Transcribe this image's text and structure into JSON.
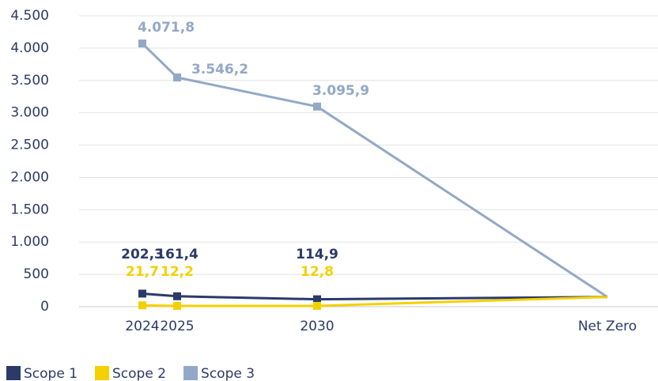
{
  "chart_data": {
    "type": "line",
    "categories": [
      "2024",
      "2025",
      "2030",
      "Net Zero"
    ],
    "series": [
      {
        "name": "Scope 1",
        "color": "#2b3a67",
        "values": [
          202.3,
          161.4,
          114.9,
          150
        ],
        "value_labels": [
          "202,3",
          "161,4",
          "114,9",
          null
        ]
      },
      {
        "name": "Scope 2",
        "color": "#f5d000",
        "values": [
          21.7,
          12.2,
          12.8,
          150
        ],
        "value_labels": [
          "21,7",
          "12,2",
          "12,8",
          null
        ]
      },
      {
        "name": "Scope 3",
        "color": "#93a8c6",
        "values": [
          4071.8,
          3546.2,
          3095.9,
          150
        ],
        "value_labels": [
          "4.071,8",
          "3.546,2",
          "3.095,9",
          null
        ]
      }
    ],
    "ylim": [
      0,
      4500
    ],
    "yticks": [
      0,
      500,
      {
        "value": 1000,
        "label": "1.000"
      },
      {
        "value": 1500,
        "label": "1.500"
      },
      {
        "value": 2000,
        "label": "2.000"
      },
      {
        "value": 2500,
        "label": "2.500"
      },
      {
        "value": 3000,
        "label": "3.000"
      },
      {
        "value": 3500,
        "label": "3.500"
      },
      {
        "value": 4000,
        "label": "4.000"
      },
      {
        "value": 4500,
        "label": "4.500"
      }
    ],
    "grid": true,
    "legend": "bottom-left"
  }
}
